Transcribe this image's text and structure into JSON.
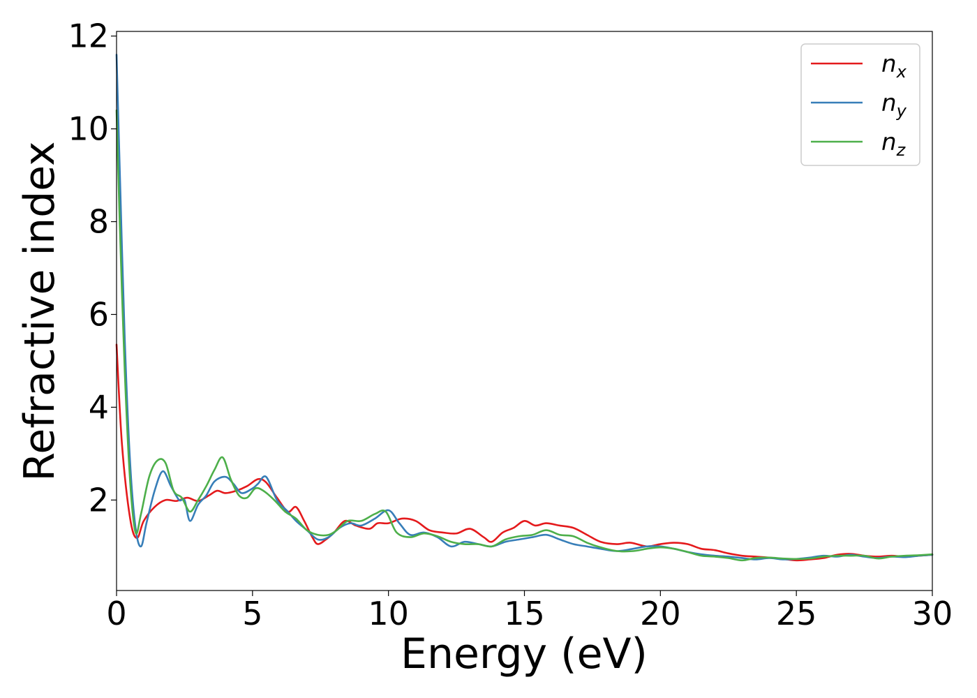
{
  "chart_data": {
    "type": "line",
    "title": "",
    "xlabel": "Energy (eV)",
    "ylabel": "Refractive index",
    "xlim": [
      0,
      30
    ],
    "ylim": [
      0.05,
      12.1
    ],
    "xticks": [
      0,
      5,
      10,
      15,
      20,
      25,
      30
    ],
    "xtick_labels": [
      "0",
      "5",
      "10",
      "15",
      "20",
      "25",
      "30"
    ],
    "yticks": [
      2,
      4,
      6,
      8,
      10,
      12
    ],
    "ytick_labels": [
      "2",
      "4",
      "6",
      "8",
      "10",
      "12"
    ],
    "grid": false,
    "legend_position": "top-right",
    "series": [
      {
        "name": "n_x",
        "label_base": "n",
        "label_sub": "x",
        "color": "#e41a1c",
        "points": [
          [
            0,
            5.35
          ],
          [
            0.2,
            3.2
          ],
          [
            0.5,
            1.6
          ],
          [
            0.75,
            1.18
          ],
          [
            1.0,
            1.55
          ],
          [
            1.4,
            1.85
          ],
          [
            1.8,
            2.0
          ],
          [
            2.2,
            1.98
          ],
          [
            2.6,
            2.05
          ],
          [
            3.0,
            1.98
          ],
          [
            3.4,
            2.1
          ],
          [
            3.7,
            2.2
          ],
          [
            4.0,
            2.15
          ],
          [
            4.4,
            2.2
          ],
          [
            4.8,
            2.3
          ],
          [
            5.2,
            2.45
          ],
          [
            5.5,
            2.38
          ],
          [
            5.9,
            2.05
          ],
          [
            6.3,
            1.75
          ],
          [
            6.6,
            1.85
          ],
          [
            6.9,
            1.55
          ],
          [
            7.2,
            1.2
          ],
          [
            7.4,
            1.05
          ],
          [
            7.7,
            1.15
          ],
          [
            8.0,
            1.3
          ],
          [
            8.4,
            1.55
          ],
          [
            8.8,
            1.45
          ],
          [
            9.3,
            1.38
          ],
          [
            9.6,
            1.5
          ],
          [
            10.0,
            1.5
          ],
          [
            10.5,
            1.6
          ],
          [
            11.0,
            1.55
          ],
          [
            11.5,
            1.35
          ],
          [
            12.0,
            1.3
          ],
          [
            12.5,
            1.28
          ],
          [
            13.0,
            1.38
          ],
          [
            13.5,
            1.2
          ],
          [
            13.8,
            1.1
          ],
          [
            14.2,
            1.3
          ],
          [
            14.6,
            1.4
          ],
          [
            15.0,
            1.55
          ],
          [
            15.4,
            1.45
          ],
          [
            15.8,
            1.5
          ],
          [
            16.3,
            1.45
          ],
          [
            16.8,
            1.4
          ],
          [
            17.3,
            1.25
          ],
          [
            17.8,
            1.1
          ],
          [
            18.4,
            1.05
          ],
          [
            18.9,
            1.08
          ],
          [
            19.5,
            1.0
          ],
          [
            20.0,
            1.05
          ],
          [
            20.5,
            1.08
          ],
          [
            21.0,
            1.05
          ],
          [
            21.5,
            0.95
          ],
          [
            22.0,
            0.92
          ],
          [
            22.5,
            0.85
          ],
          [
            23.0,
            0.8
          ],
          [
            23.5,
            0.78
          ],
          [
            24.0,
            0.76
          ],
          [
            24.5,
            0.73
          ],
          [
            25.0,
            0.7
          ],
          [
            25.5,
            0.72
          ],
          [
            26.0,
            0.75
          ],
          [
            26.5,
            0.82
          ],
          [
            27.0,
            0.84
          ],
          [
            27.5,
            0.8
          ],
          [
            28.0,
            0.78
          ],
          [
            28.5,
            0.8
          ],
          [
            29.0,
            0.78
          ],
          [
            29.5,
            0.8
          ],
          [
            30.0,
            0.82
          ]
        ]
      },
      {
        "name": "n_y",
        "label_base": "n",
        "label_sub": "y",
        "color": "#377eb8",
        "points": [
          [
            0,
            11.6
          ],
          [
            0.1,
            9.5
          ],
          [
            0.3,
            5.5
          ],
          [
            0.5,
            2.8
          ],
          [
            0.7,
            1.4
          ],
          [
            0.9,
            1.0
          ],
          [
            1.1,
            1.5
          ],
          [
            1.4,
            2.2
          ],
          [
            1.7,
            2.62
          ],
          [
            2.0,
            2.3
          ],
          [
            2.3,
            2.0
          ],
          [
            2.5,
            2.0
          ],
          [
            2.7,
            1.55
          ],
          [
            3.0,
            1.9
          ],
          [
            3.3,
            2.1
          ],
          [
            3.6,
            2.4
          ],
          [
            4.0,
            2.5
          ],
          [
            4.3,
            2.35
          ],
          [
            4.6,
            2.15
          ],
          [
            5.0,
            2.25
          ],
          [
            5.2,
            2.35
          ],
          [
            5.5,
            2.5
          ],
          [
            5.9,
            2.0
          ],
          [
            6.3,
            1.75
          ],
          [
            6.6,
            1.55
          ],
          [
            7.0,
            1.35
          ],
          [
            7.4,
            1.15
          ],
          [
            7.8,
            1.2
          ],
          [
            8.2,
            1.4
          ],
          [
            8.6,
            1.5
          ],
          [
            9.0,
            1.45
          ],
          [
            9.5,
            1.6
          ],
          [
            10.0,
            1.78
          ],
          [
            10.4,
            1.5
          ],
          [
            10.8,
            1.25
          ],
          [
            11.3,
            1.3
          ],
          [
            11.8,
            1.2
          ],
          [
            12.3,
            1.0
          ],
          [
            12.8,
            1.1
          ],
          [
            13.3,
            1.05
          ],
          [
            13.8,
            1.0
          ],
          [
            14.3,
            1.1
          ],
          [
            14.8,
            1.15
          ],
          [
            15.3,
            1.2
          ],
          [
            15.8,
            1.25
          ],
          [
            16.3,
            1.15
          ],
          [
            16.8,
            1.05
          ],
          [
            17.3,
            1.0
          ],
          [
            17.8,
            0.95
          ],
          [
            18.4,
            0.9
          ],
          [
            19.0,
            0.95
          ],
          [
            19.5,
            1.0
          ],
          [
            20.0,
            1.0
          ],
          [
            20.5,
            0.95
          ],
          [
            21.0,
            0.88
          ],
          [
            21.5,
            0.83
          ],
          [
            22.0,
            0.8
          ],
          [
            22.5,
            0.78
          ],
          [
            23.0,
            0.75
          ],
          [
            23.5,
            0.72
          ],
          [
            24.0,
            0.75
          ],
          [
            24.5,
            0.72
          ],
          [
            25.0,
            0.73
          ],
          [
            25.5,
            0.76
          ],
          [
            26.0,
            0.8
          ],
          [
            26.5,
            0.78
          ],
          [
            27.0,
            0.82
          ],
          [
            27.5,
            0.78
          ],
          [
            28.0,
            0.75
          ],
          [
            28.5,
            0.78
          ],
          [
            29.0,
            0.77
          ],
          [
            29.5,
            0.8
          ],
          [
            30.0,
            0.82
          ]
        ]
      },
      {
        "name": "n_z",
        "label_base": "n",
        "label_sub": "z",
        "color": "#4daf4a",
        "points": [
          [
            0,
            10.4
          ],
          [
            0.1,
            8.3
          ],
          [
            0.3,
            4.8
          ],
          [
            0.5,
            2.4
          ],
          [
            0.7,
            1.3
          ],
          [
            0.9,
            1.7
          ],
          [
            1.2,
            2.5
          ],
          [
            1.5,
            2.85
          ],
          [
            1.8,
            2.8
          ],
          [
            2.1,
            2.2
          ],
          [
            2.4,
            2.05
          ],
          [
            2.7,
            1.75
          ],
          [
            3.0,
            2.0
          ],
          [
            3.3,
            2.3
          ],
          [
            3.6,
            2.65
          ],
          [
            3.9,
            2.92
          ],
          [
            4.2,
            2.45
          ],
          [
            4.5,
            2.1
          ],
          [
            4.8,
            2.05
          ],
          [
            5.1,
            2.25
          ],
          [
            5.4,
            2.2
          ],
          [
            5.8,
            2.0
          ],
          [
            6.2,
            1.75
          ],
          [
            6.6,
            1.6
          ],
          [
            7.0,
            1.35
          ],
          [
            7.4,
            1.25
          ],
          [
            7.8,
            1.25
          ],
          [
            8.1,
            1.35
          ],
          [
            8.5,
            1.55
          ],
          [
            9.0,
            1.55
          ],
          [
            9.5,
            1.7
          ],
          [
            9.9,
            1.75
          ],
          [
            10.3,
            1.3
          ],
          [
            10.8,
            1.2
          ],
          [
            11.3,
            1.28
          ],
          [
            11.8,
            1.22
          ],
          [
            12.3,
            1.1
          ],
          [
            12.8,
            1.05
          ],
          [
            13.3,
            1.05
          ],
          [
            13.8,
            1.0
          ],
          [
            14.3,
            1.15
          ],
          [
            14.8,
            1.22
          ],
          [
            15.3,
            1.25
          ],
          [
            15.8,
            1.35
          ],
          [
            16.3,
            1.25
          ],
          [
            16.8,
            1.22
          ],
          [
            17.3,
            1.08
          ],
          [
            17.8,
            0.98
          ],
          [
            18.4,
            0.9
          ],
          [
            19.0,
            0.9
          ],
          [
            19.5,
            0.95
          ],
          [
            20.0,
            0.98
          ],
          [
            20.5,
            0.95
          ],
          [
            21.0,
            0.88
          ],
          [
            21.5,
            0.8
          ],
          [
            22.0,
            0.78
          ],
          [
            22.5,
            0.75
          ],
          [
            23.0,
            0.7
          ],
          [
            23.5,
            0.75
          ],
          [
            24.0,
            0.76
          ],
          [
            24.5,
            0.74
          ],
          [
            25.0,
            0.73
          ],
          [
            25.5,
            0.74
          ],
          [
            26.0,
            0.78
          ],
          [
            26.5,
            0.8
          ],
          [
            27.0,
            0.8
          ],
          [
            27.5,
            0.8
          ],
          [
            28.0,
            0.74
          ],
          [
            28.5,
            0.78
          ],
          [
            29.0,
            0.8
          ],
          [
            29.5,
            0.81
          ],
          [
            30.0,
            0.83
          ]
        ]
      }
    ]
  }
}
